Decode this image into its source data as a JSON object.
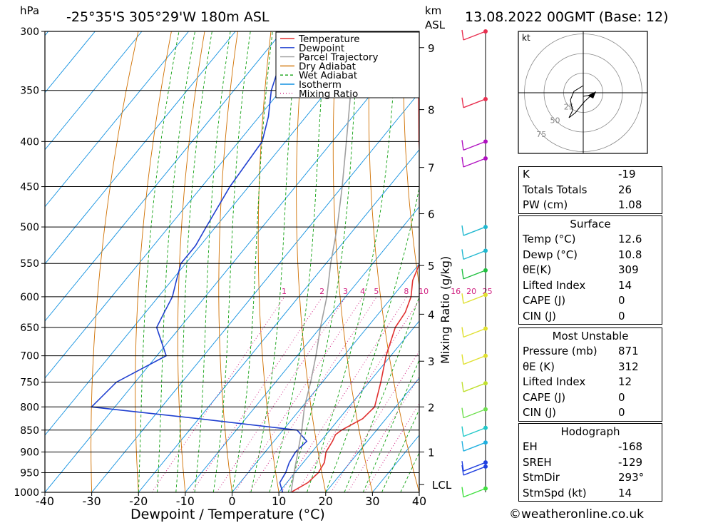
{
  "header": {
    "location": "-25°35'S 305°29'W 180m ASL",
    "datetime": "13.08.2022 00GMT (Base: 12)",
    "y_unit_left": "hPa",
    "y_unit_right_1": "km",
    "y_unit_right_2": "ASL"
  },
  "chart_data": {
    "type": "line",
    "xlabel": "Dewpoint / Temperature (°C)",
    "ylabel_right": "Mixing Ratio (g/kg)",
    "xlim": [
      -40,
      40
    ],
    "pressure_levels": [
      300,
      350,
      400,
      450,
      500,
      550,
      600,
      650,
      700,
      750,
      800,
      850,
      900,
      950,
      1000
    ],
    "x_ticks": [
      -40,
      -30,
      -20,
      -10,
      0,
      10,
      20,
      30,
      40
    ],
    "km_ticks": [
      {
        "label": "1",
        "p": 900
      },
      {
        "label": "2",
        "p": 800
      },
      {
        "label": "3",
        "p": 710
      },
      {
        "label": "4",
        "p": 628
      },
      {
        "label": "5",
        "p": 553
      },
      {
        "label": "6",
        "p": 483
      },
      {
        "label": "7",
        "p": 428
      },
      {
        "label": "8",
        "p": 368
      },
      {
        "label": "9",
        "p": 313
      }
    ],
    "lcl": {
      "label": "LCL",
      "p": 980
    },
    "mixing_ratio_labels": [
      "1",
      "2",
      "3",
      "4",
      "5",
      "8",
      "10",
      "16",
      "20",
      "25"
    ],
    "mixing_ratio_values": [
      1,
      2,
      3,
      4,
      5,
      8,
      10,
      16,
      20,
      25
    ],
    "legend": [
      {
        "name": "Temperature",
        "color": "#e03030",
        "dash": ""
      },
      {
        "name": "Dewpoint",
        "color": "#2040d0",
        "dash": ""
      },
      {
        "name": "Parcel Trajectory",
        "color": "#a0a0a0",
        "dash": ""
      },
      {
        "name": "Dry Adiabat",
        "color": "#d07000",
        "dash": ""
      },
      {
        "name": "Wet Adiabat",
        "color": "#10a010",
        "dash": "4,3"
      },
      {
        "name": "Isotherm",
        "color": "#1090e0",
        "dash": ""
      },
      {
        "name": "Mixing Ratio",
        "color": "#d02080",
        "dash": "1,3"
      }
    ],
    "series": [
      {
        "name": "Temperature",
        "color": "#e03030",
        "points": [
          [
            1000,
            12.6
          ],
          [
            975,
            14.5
          ],
          [
            950,
            15
          ],
          [
            925,
            14.5
          ],
          [
            900,
            13
          ],
          [
            875,
            12.5
          ],
          [
            860,
            12
          ],
          [
            850,
            12.5
          ],
          [
            825,
            15
          ],
          [
            800,
            15.5
          ],
          [
            750,
            12.5
          ],
          [
            700,
            9
          ],
          [
            650,
            6
          ],
          [
            625,
            5.5
          ],
          [
            600,
            4
          ],
          [
            575,
            1.5
          ],
          [
            550,
            0
          ],
          [
            525,
            -2
          ],
          [
            500,
            -6
          ],
          [
            450,
            -13
          ],
          [
            400,
            -21.5
          ],
          [
            350,
            -30.5
          ],
          [
            320,
            -37
          ],
          [
            300,
            -43
          ]
        ]
      },
      {
        "name": "Dewpoint",
        "color": "#2040d0",
        "points": [
          [
            1000,
            10.8
          ],
          [
            975,
            8.5
          ],
          [
            950,
            8
          ],
          [
            925,
            7
          ],
          [
            900,
            6.5
          ],
          [
            875,
            7
          ],
          [
            850,
            3
          ],
          [
            825,
            -20
          ],
          [
            800,
            -45
          ],
          [
            750,
            -44
          ],
          [
            700,
            -38
          ],
          [
            650,
            -45
          ],
          [
            625,
            -46
          ],
          [
            600,
            -47
          ],
          [
            575,
            -49
          ],
          [
            550,
            -51
          ],
          [
            525,
            -51
          ],
          [
            500,
            -52
          ],
          [
            450,
            -54
          ],
          [
            400,
            -55
          ],
          [
            375,
            -58
          ],
          [
            350,
            -62
          ],
          [
            325,
            -65
          ],
          [
            312,
            -63
          ],
          [
            300,
            -70
          ]
        ]
      },
      {
        "name": "Parcel Trajectory",
        "color": "#a0a0a0",
        "points": [
          [
            1000,
            12.6
          ],
          [
            950,
            9.8
          ],
          [
            900,
            7
          ],
          [
            850,
            4
          ],
          [
            800,
            0.5
          ],
          [
            750,
            -2.5
          ],
          [
            700,
            -6
          ],
          [
            650,
            -10
          ],
          [
            600,
            -14
          ],
          [
            550,
            -19
          ],
          [
            500,
            -24
          ],
          [
            450,
            -30
          ],
          [
            400,
            -37
          ],
          [
            350,
            -45
          ],
          [
            300,
            -54
          ]
        ]
      }
    ]
  },
  "wind_profile": [
    {
      "p": 300,
      "color": "#e83050"
    },
    {
      "p": 358,
      "color": "#e83050"
    },
    {
      "p": 400,
      "color": "#b010c0"
    },
    {
      "p": 418,
      "color": "#b010c0"
    },
    {
      "p": 500,
      "color": "#20b8d0"
    },
    {
      "p": 532,
      "color": "#20b8d0"
    },
    {
      "p": 560,
      "color": "#20c040"
    },
    {
      "p": 597,
      "color": "#e0e030"
    },
    {
      "p": 652,
      "color": "#e0e030"
    },
    {
      "p": 700,
      "color": "#e0e030"
    },
    {
      "p": 752,
      "color": "#c0e030"
    },
    {
      "p": 805,
      "color": "#70e050"
    },
    {
      "p": 845,
      "color": "#20c8c8"
    },
    {
      "p": 878,
      "color": "#20b0e0"
    },
    {
      "p": 925,
      "color": "#2040e0"
    },
    {
      "p": 935,
      "color": "#2040e0"
    },
    {
      "p": 990,
      "color": "#40e040"
    }
  ],
  "hodograph": {
    "unit": "kt",
    "rings": [
      "25",
      "50",
      "75"
    ]
  },
  "indices": [
    {
      "label": "K",
      "value": "-19"
    },
    {
      "label": "Totals Totals",
      "value": "26"
    },
    {
      "label": "PW (cm)",
      "value": "1.08"
    }
  ],
  "surface": {
    "title": "Surface",
    "rows": [
      {
        "label": "Temp (°C)",
        "value": "12.6"
      },
      {
        "label": "Dewp (°C)",
        "value": "10.8"
      },
      {
        "label": "θE(K)",
        "value": "309"
      },
      {
        "label": "Lifted Index",
        "value": "14"
      },
      {
        "label": "CAPE (J)",
        "value": "0"
      },
      {
        "label": "CIN (J)",
        "value": "0"
      }
    ]
  },
  "most_unstable": {
    "title": "Most Unstable",
    "rows": [
      {
        "label": "Pressure (mb)",
        "value": "871"
      },
      {
        "label": "θE (K)",
        "value": "312"
      },
      {
        "label": "Lifted Index",
        "value": "12"
      },
      {
        "label": "CAPE (J)",
        "value": "0"
      },
      {
        "label": "CIN (J)",
        "value": "0"
      }
    ]
  },
  "hodograph_table": {
    "title": "Hodograph",
    "rows": [
      {
        "label": "EH",
        "value": "-168"
      },
      {
        "label": "SREH",
        "value": "-129"
      },
      {
        "label": "StmDir",
        "value": "293°"
      },
      {
        "label": "StmSpd (kt)",
        "value": "14"
      }
    ]
  },
  "copyright": "©weatheronline.co.uk"
}
